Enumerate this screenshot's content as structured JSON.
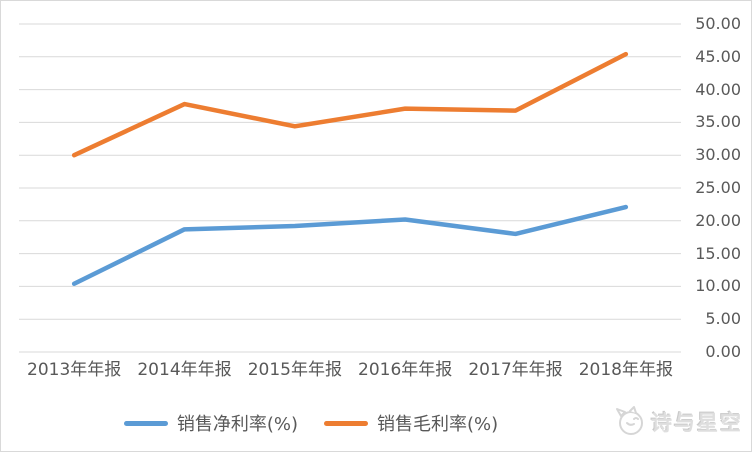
{
  "chart_data": {
    "type": "line",
    "categories": [
      "2013年年报",
      "2014年年报",
      "2015年年报",
      "2016年年报",
      "2017年年报",
      "2018年年报"
    ],
    "series": [
      {
        "name": "销售净利率(%)",
        "color": "#5B9BD5",
        "values": [
          10.4,
          18.7,
          19.2,
          20.2,
          18.0,
          22.1
        ]
      },
      {
        "name": "销售毛利率(%)",
        "color": "#ED7D31",
        "values": [
          30.0,
          37.8,
          34.4,
          37.1,
          36.8,
          45.4
        ]
      }
    ],
    "title": "",
    "xlabel": "",
    "ylabel": "",
    "y_axis": {
      "min": 0,
      "max": 50,
      "step": 5,
      "side": "right",
      "tick_labels": [
        "0.00",
        "5.00",
        "10.00",
        "15.00",
        "20.00",
        "25.00",
        "30.00",
        "35.00",
        "40.00",
        "45.00",
        "50.00"
      ]
    },
    "grid": true,
    "gridline_color": "#D9D9D9",
    "legend_position": "bottom"
  },
  "watermark": {
    "text": "诗与星空"
  }
}
